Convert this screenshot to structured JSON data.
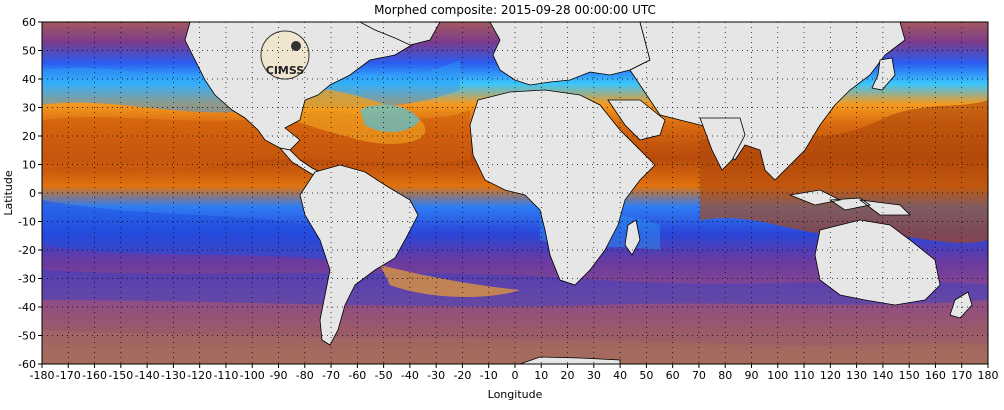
{
  "title": "Morphed composite: 2015-09-28 00:00:00 UTC",
  "xlabel": "Longitude",
  "ylabel": "Latitude",
  "x_ticks": [
    "-180",
    "-170",
    "-160",
    "-150",
    "-140",
    "-130",
    "-120",
    "-110",
    "-100",
    "-90",
    "-80",
    "-70",
    "-60",
    "-50",
    "-40",
    "-30",
    "-20",
    "-10",
    "0",
    "10",
    "20",
    "30",
    "40",
    "50",
    "60",
    "70",
    "80",
    "90",
    "100",
    "110",
    "120",
    "130",
    "140",
    "150",
    "160",
    "170",
    "180"
  ],
  "y_ticks": [
    "60",
    "50",
    "40",
    "30",
    "20",
    "10",
    "0",
    "-10",
    "-20",
    "-30",
    "-40",
    "-50",
    "-60"
  ],
  "logo_text": "CIMSS",
  "colors": {
    "land": "#e6e6e6",
    "very_high": "#b0400a",
    "high": "#e07010",
    "mid": "#ffb020",
    "low_mid": "#30c0ff",
    "low": "#2050e0",
    "very_low": "#8a3c90",
    "dry": "#a05a5a"
  }
}
